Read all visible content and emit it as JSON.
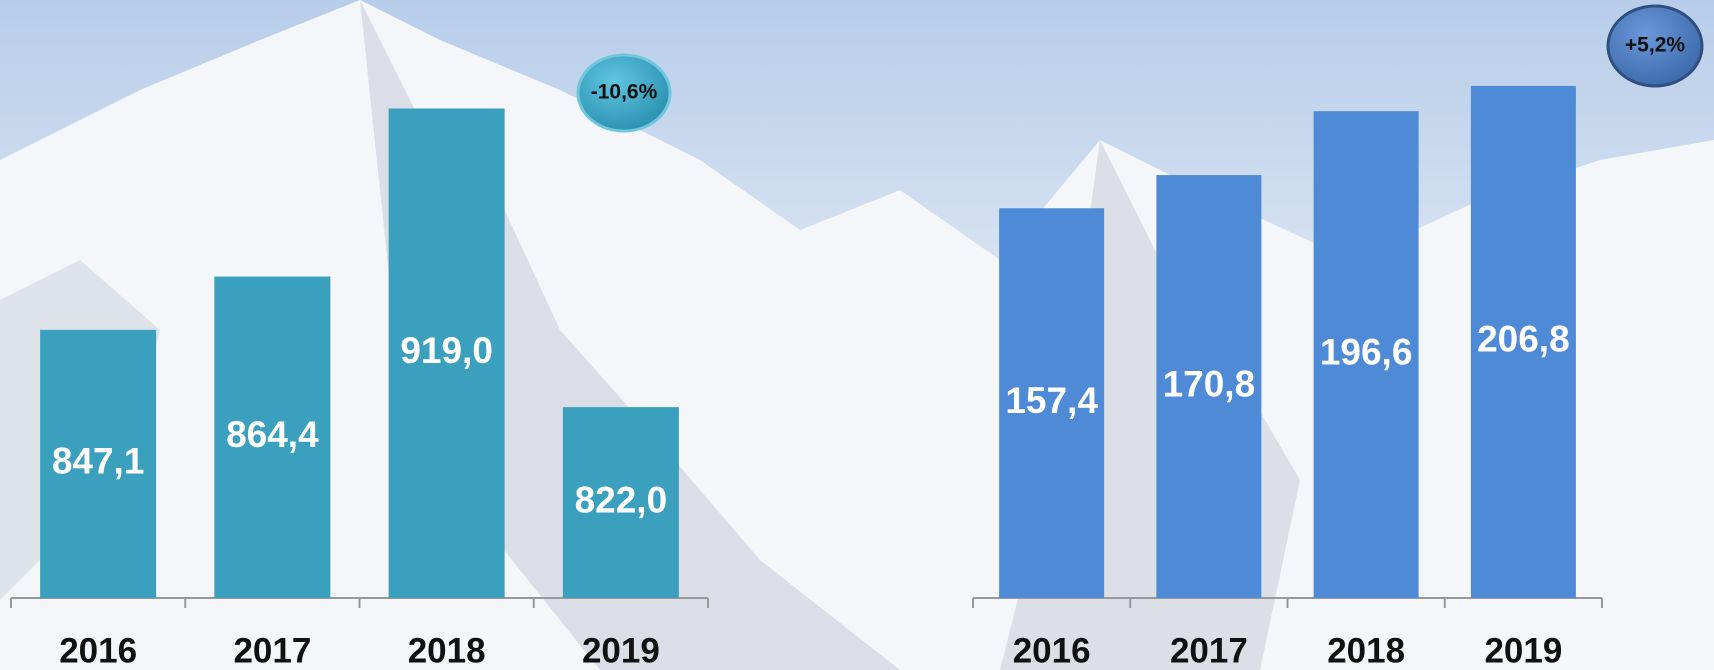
{
  "chart_data": [
    {
      "type": "bar",
      "categories": [
        "2016",
        "2017",
        "2018",
        "2019"
      ],
      "values": [
        847.1,
        864.4,
        919.0,
        822.0
      ],
      "value_labels": [
        "847,1",
        "864,4",
        "919,0",
        "822,0"
      ],
      "color": "#3aa0be",
      "ylim": [
        760,
        925
      ],
      "annotation": "-10,6%"
    },
    {
      "type": "bar",
      "categories": [
        "2016",
        "2017",
        "2018",
        "2019"
      ],
      "values": [
        157.4,
        170.8,
        196.6,
        206.8
      ],
      "value_labels": [
        "157,4",
        "170,8",
        "196,6",
        "206,8"
      ],
      "color": "#4f8ad6",
      "ylim": [
        0,
        210
      ],
      "annotation": "+5,2%"
    }
  ]
}
